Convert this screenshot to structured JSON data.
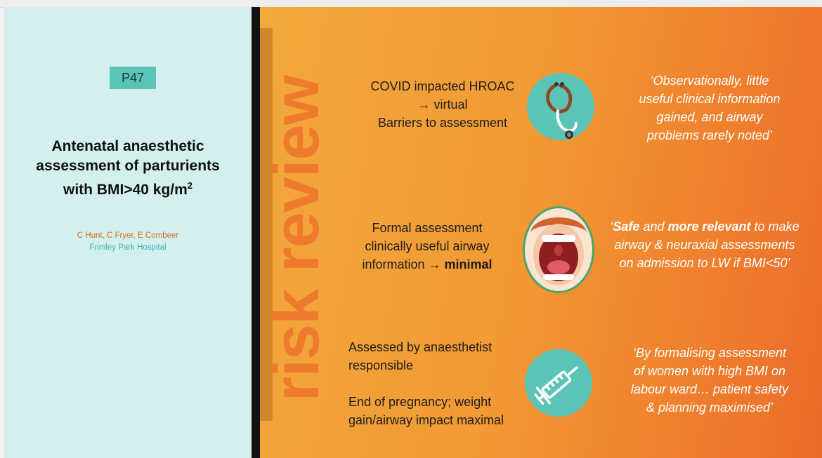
{
  "poster": {
    "badge": "P47",
    "title_main": "Antenatal anaesthetic assessment of parturients with BMI>40 kg/m",
    "title_sup": "2",
    "authors": "C Hunt, C Fryer, E Combeer",
    "hospital": "Frimley Park Hospital"
  },
  "vertical_heading": "risk review",
  "rows": [
    {
      "lines": [
        "COVID impacted HROAC",
        "→ virtual",
        "Barriers to assessment"
      ],
      "icon": "stethoscope-icon",
      "quote_lines": [
        "‘Observationally, little",
        "useful clinical information",
        "gained, and airway",
        "problems rarely noted’"
      ]
    },
    {
      "lines": [
        "Formal assessment",
        "clinically useful airway",
        "information → "
      ],
      "emphasis": "minimal",
      "icon": "open-mouth-icon",
      "quote_parts": [
        "‘",
        "Safe",
        " and ",
        "more relevant",
        " to make"
      ],
      "quote_lines": [
        "airway & neuraxial assessments",
        "on admission to LW if BMI<50’"
      ]
    },
    {
      "lines": [
        "Assessed by anaesthetist",
        "responsible"
      ],
      "lines_b": [
        "End of pregnancy; weight",
        "gain/airway impact maximal"
      ],
      "icon": "syringe-icon",
      "quote_lines": [
        "‘By formalising assessment",
        "of women with high BMI on",
        "labour ward… patient safety",
        "& planning maximised’"
      ]
    }
  ],
  "colors": {
    "teal": "#5bc4b6",
    "left_bg": "#d3f0ee",
    "orange_start": "#f2a83b",
    "orange_end": "#ea6b2a",
    "author_orange": "#d9691f",
    "hospital_teal": "#3fb3aa"
  }
}
